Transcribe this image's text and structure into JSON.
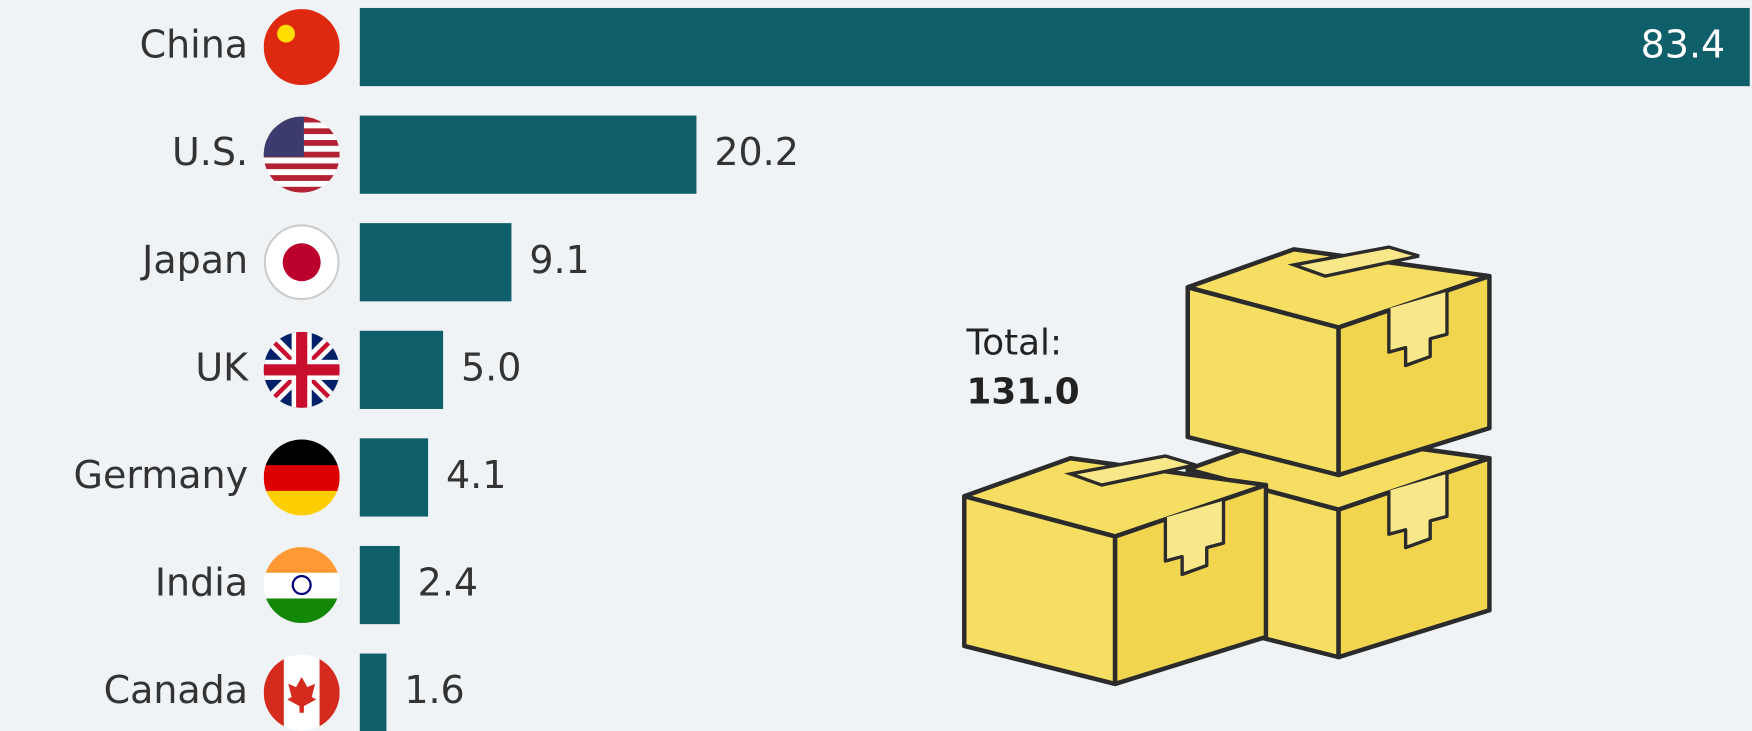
{
  "chart_data": {
    "type": "bar",
    "orientation": "horizontal",
    "categories": [
      "China",
      "U.S.",
      "Japan",
      "UK",
      "Germany",
      "India",
      "Canada"
    ],
    "values": [
      83.4,
      20.2,
      9.1,
      5.0,
      4.1,
      2.4,
      1.6
    ],
    "value_labels": [
      "83.4",
      "20.2",
      "9.1",
      "5.0",
      "4.1",
      "2.4",
      "1.6"
    ],
    "color": "#0f5f6a",
    "annotations": [
      "Total:",
      "131.0"
    ]
  }
}
